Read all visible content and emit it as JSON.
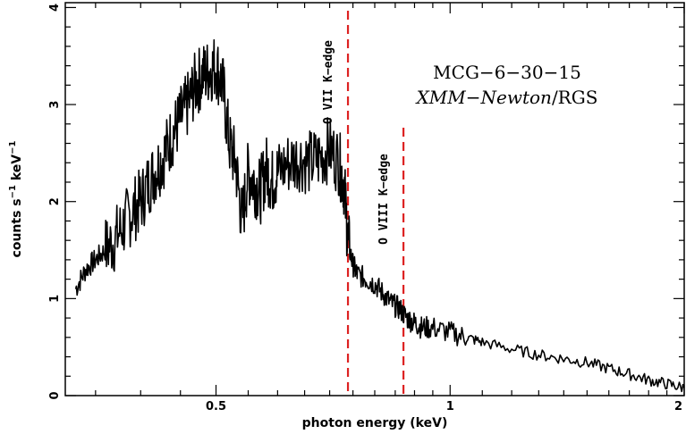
{
  "chart_data": {
    "type": "line",
    "xlabel": "photon energy (keV)",
    "ylabel_main": "counts s",
    "ylabel_sup1": "−1",
    "ylabel_mid": " keV",
    "ylabel_sup2": "−1",
    "xscale": "log",
    "xlim": [
      0.32,
      2.0
    ],
    "ylim": [
      0,
      4.05
    ],
    "xticks_major": [
      0.5,
      1,
      2
    ],
    "xtick_labels": [
      "0.5",
      "1",
      "2"
    ],
    "yticks_major": [
      0,
      1,
      2,
      3,
      4
    ],
    "ytick_labels": [
      "0",
      "1",
      "2",
      "3",
      "4"
    ],
    "annotation_line1": "MCG−6−30−15",
    "annotation_italic": "XMM−Newton",
    "annotation_rest": "/RGS",
    "edges": [
      {
        "label": "O VII K−edge",
        "energy": 0.739,
        "color": "#dd2222"
      },
      {
        "label": "O VIII K−edge",
        "energy": 0.871,
        "color": "#dd2222"
      }
    ],
    "series": [
      {
        "x": [
          0.33,
          0.34,
          0.35,
          0.36,
          0.37,
          0.38,
          0.39,
          0.4,
          0.41,
          0.42,
          0.43,
          0.44,
          0.45,
          0.46,
          0.47,
          0.48,
          0.49,
          0.5,
          0.51,
          0.52,
          0.53,
          0.54,
          0.55,
          0.56,
          0.57,
          0.58,
          0.59,
          0.6,
          0.62,
          0.64,
          0.66,
          0.68,
          0.7,
          0.72,
          0.73,
          0.74,
          0.75,
          0.76,
          0.78,
          0.8,
          0.82,
          0.84,
          0.86,
          0.88,
          0.9,
          0.92,
          0.95,
          1.0,
          1.05,
          1.1,
          1.2,
          1.3,
          1.4,
          1.5,
          1.6,
          1.7,
          1.8,
          1.9,
          2.0
        ],
        "y": [
          1.1,
          1.3,
          1.4,
          1.5,
          1.6,
          1.75,
          1.9,
          2.0,
          2.2,
          2.35,
          2.5,
          2.7,
          2.85,
          3.0,
          3.2,
          3.3,
          3.35,
          3.4,
          3.2,
          2.6,
          2.4,
          1.8,
          2.3,
          2.2,
          2.1,
          2.35,
          2.2,
          2.3,
          2.4,
          2.45,
          2.4,
          2.45,
          2.55,
          2.4,
          2.2,
          1.55,
          1.35,
          1.25,
          1.2,
          1.15,
          1.05,
          0.95,
          0.9,
          0.8,
          0.75,
          0.7,
          0.7,
          0.65,
          0.6,
          0.55,
          0.48,
          0.42,
          0.38,
          0.34,
          0.28,
          0.22,
          0.16,
          0.12,
          0.08
        ]
      }
    ]
  }
}
